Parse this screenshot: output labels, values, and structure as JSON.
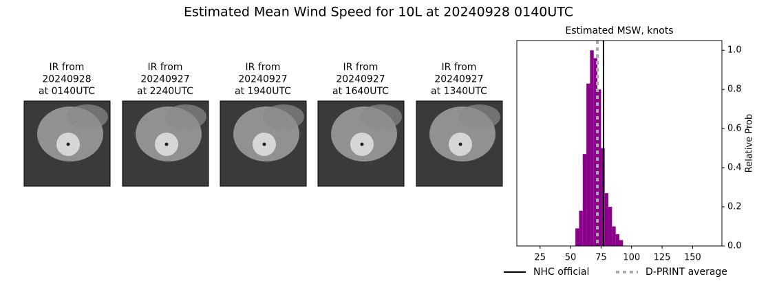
{
  "title": "Estimated Mean Wind Speed for 10L at 20240928 0140UTC",
  "panels": [
    {
      "lines": [
        "IR from",
        "20240928",
        "at 0140UTC"
      ]
    },
    {
      "lines": [
        "IR from",
        "20240927",
        "at 2240UTC"
      ]
    },
    {
      "lines": [
        "IR from",
        "20240927",
        "at 1940UTC"
      ]
    },
    {
      "lines": [
        "IR from",
        "20240927",
        "at 1640UTC"
      ]
    },
    {
      "lines": [
        "IR from",
        "20240927",
        "at 1340UTC"
      ]
    }
  ],
  "chart_data": {
    "type": "histogram",
    "title": "Estimated MSW, knots",
    "y_label": "Relative Prob",
    "bins": [
      54,
      57,
      60,
      63,
      66,
      69,
      72,
      75,
      78,
      81,
      84,
      87,
      90,
      93
    ],
    "values": [
      0.09,
      0.18,
      0.47,
      0.83,
      1.0,
      0.96,
      0.8,
      0.5,
      0.27,
      0.2,
      0.1,
      0.06,
      0.03
    ],
    "color": "#8b008b",
    "reference_lines": [
      {
        "name": "NHC official",
        "value": 77,
        "color": "#000000",
        "style": "solid"
      },
      {
        "name": "D-PRINT average",
        "value": 72,
        "color": "#aaaaaa",
        "style": "dotted"
      }
    ],
    "xlim": [
      6,
      174
    ],
    "xticks": [
      25,
      50,
      75,
      100,
      125,
      150
    ],
    "ylim": [
      0,
      1.05
    ],
    "yticks": [
      {
        "value": 0,
        "label": "0.0"
      },
      0.2,
      0.4,
      0.6,
      0.8,
      {
        "value": 1,
        "label": "1.0"
      }
    ]
  }
}
